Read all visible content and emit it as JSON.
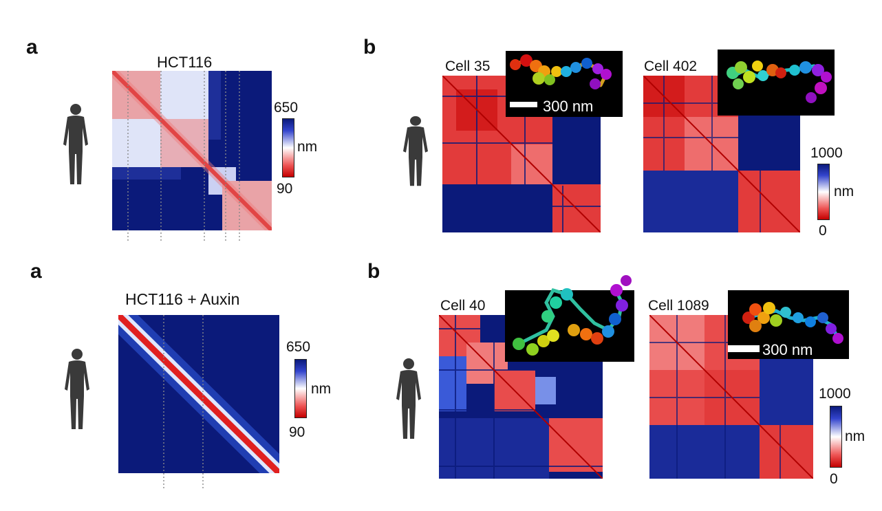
{
  "colors": {
    "near": "#d71a1a",
    "mid": "#ffffff",
    "far": "#0b1a7a",
    "background": "#ffffff",
    "inset_bg": "#000000",
    "silhouette": "#3a3a3a"
  },
  "top": {
    "panel_a": {
      "letter": "a",
      "title": "HCT116",
      "colorbar": {
        "max": "650",
        "unit": "nm",
        "min": "90"
      }
    },
    "panel_b": {
      "letter": "b",
      "cells": [
        {
          "label": "Cell 35",
          "scalebar": "300 nm"
        },
        {
          "label": "Cell 402"
        }
      ],
      "colorbar": {
        "max": "1000",
        "unit": "nm",
        "min": "0"
      }
    }
  },
  "bottom": {
    "panel_a": {
      "letter": "a",
      "title": "HCT116 + Auxin",
      "colorbar": {
        "max": "650",
        "unit": "nm",
        "min": "90"
      }
    },
    "panel_b": {
      "letter": "b",
      "cells": [
        {
          "label": "Cell 40"
        },
        {
          "label": "Cell 1089",
          "scalebar": "300 nm"
        }
      ],
      "colorbar": {
        "max": "1000",
        "unit": "nm",
        "min": "0"
      }
    }
  },
  "icons": [
    "human-silhouette-icon"
  ]
}
